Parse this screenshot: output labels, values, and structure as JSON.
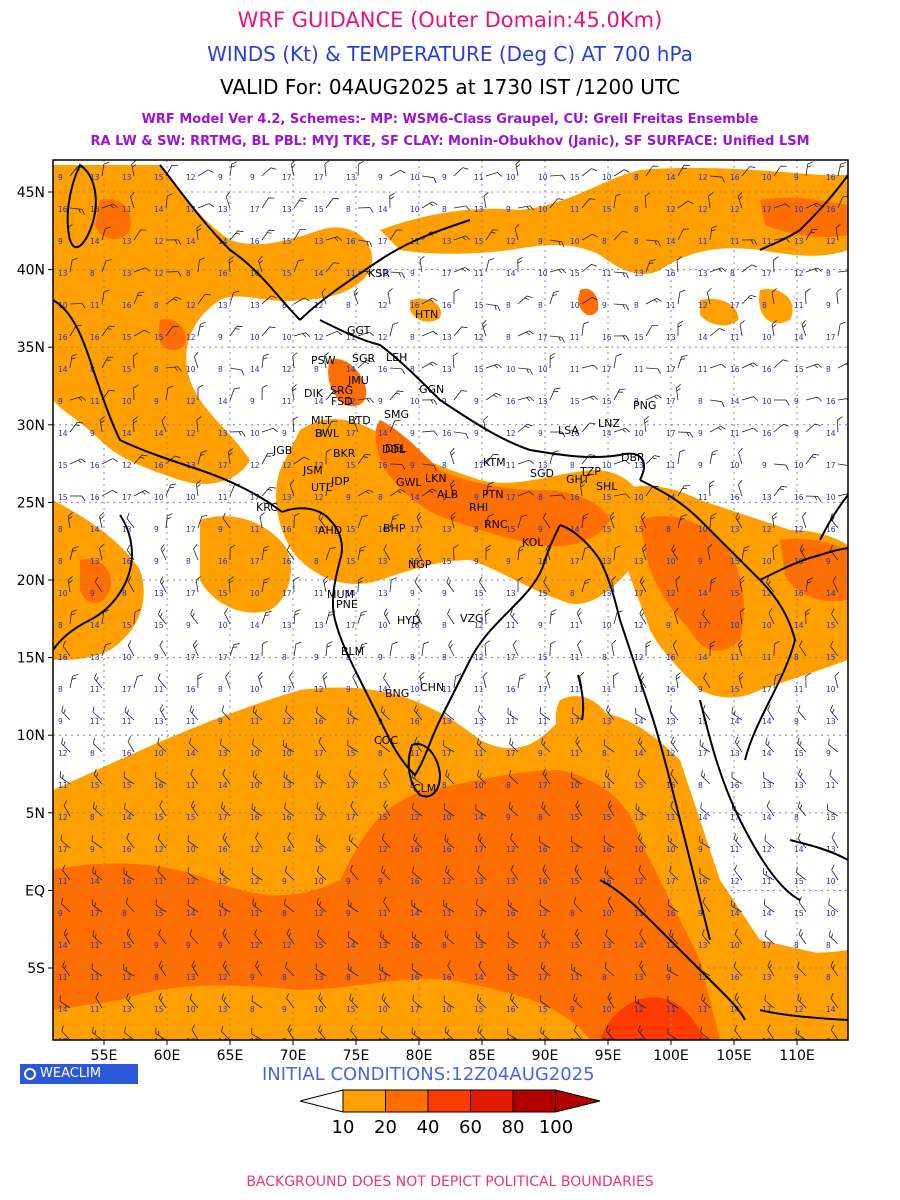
{
  "titles": {
    "line1": "WRF GUIDANCE (Outer Domain:45.0Km)",
    "line2": "WINDS (Kt) & TEMPERATURE (Deg C) AT 700 hPa",
    "line3": "VALID For: 04AUG2025 at 1730 IST /1200 UTC",
    "line4": "WRF Model Ver 4.2, Schemes:- MP: WSM6-Class Graupel, CU: Grell Freitas Ensemble",
    "line5": "RA LW & SW: RRTMG, BL PBL: MYJ TKE, SF CLAY: Monin-Obukhov (Janic), SF SURFACE: Unified LSM"
  },
  "colors": {
    "line1": "#e8137a",
    "line2": "#2a3ee0",
    "line4": "#9a14d6",
    "line5": "#9a14d6",
    "init": "#4a64e6",
    "footer": "#f0307a",
    "shade_10_20": "#ffa000",
    "shade_20_40": "#ff6e00",
    "shade_40_60": "#ff3c00",
    "shade_60_80": "#e41a00",
    "shade_80_100": "#b20000",
    "coast": "#000000",
    "wind_text": "#2030d0"
  },
  "axes": {
    "lat_labels": [
      "45N",
      "40N",
      "35N",
      "30N",
      "25N",
      "20N",
      "15N",
      "10N",
      "5N",
      "EQ",
      "5S"
    ],
    "lon_labels": [
      "55E",
      "60E",
      "65E",
      "70E",
      "75E",
      "80E",
      "85E",
      "90E",
      "95E",
      "100E",
      "105E",
      "110E"
    ]
  },
  "cities": [
    "KSR",
    "HTN",
    "GGT",
    "PSW",
    "SGR",
    "LEH",
    "JMU",
    "GGN",
    "DIK",
    "SRG",
    "FSD",
    "MLT",
    "BTD",
    "SMG",
    "BWL",
    "DEL",
    "LSA",
    "LNZ",
    "PNG",
    "BKR",
    "KTM",
    "JGB",
    "DDL",
    "SGD",
    "TZP",
    "DBR",
    "JSM",
    "LKN",
    "JDP",
    "GHT",
    "SHL",
    "GWL",
    "UTL",
    "PTN",
    "ALB",
    "KRC",
    "RHI",
    "RNC",
    "AHD",
    "BHP",
    "KOL",
    "NGP",
    "MUM",
    "PNE",
    "HYD",
    "VZG",
    "BLM",
    "BNG",
    "CHN",
    "COC",
    "CLM"
  ],
  "colorbar": {
    "ticks": [
      "10",
      "20",
      "40",
      "60",
      "80",
      "100"
    ]
  },
  "logo": "WEACLIM",
  "initial_conditions": "INITIAL CONDITIONS:12Z04AUG2025",
  "footer": "BACKGROUND DOES NOT DEPICT POLITICAL BOUNDARIES"
}
